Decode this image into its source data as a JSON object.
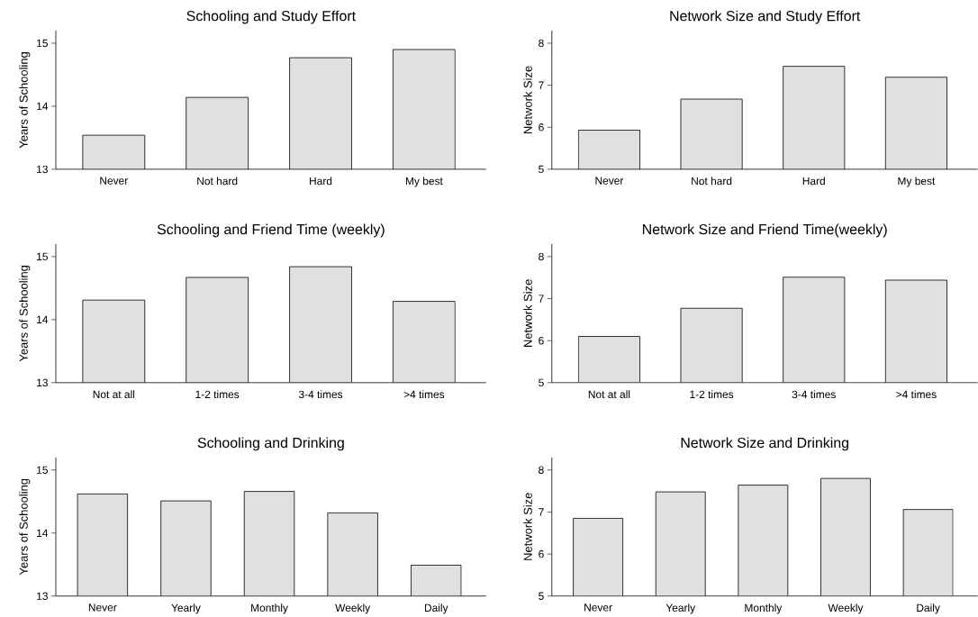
{
  "chart_data": [
    {
      "type": "bar",
      "title": "Schooling and Study Effort",
      "ylabel": "Years of Schooling",
      "categories": [
        "Never",
        "Not hard",
        "Hard",
        "My best"
      ],
      "values": [
        13.54,
        14.14,
        14.77,
        14.9
      ],
      "color": "#e0e0e0",
      "ylim": [
        13,
        15.2
      ],
      "yticks": [
        13,
        14,
        15
      ]
    },
    {
      "type": "bar",
      "title": "Network Size and Study Effort",
      "ylabel": "Network Size",
      "categories": [
        "Never",
        "Not hard",
        "Hard",
        "My best"
      ],
      "values": [
        5.93,
        6.67,
        7.45,
        7.19
      ],
      "color": "#e0e0e0",
      "ylim": [
        5,
        8.3
      ],
      "yticks": [
        5,
        6,
        7,
        8
      ]
    },
    {
      "type": "bar",
      "title": "Schooling and Friend Time (weekly)",
      "ylabel": "Years of Schooling",
      "categories": [
        "Not at all",
        "1-2 times",
        "3-4 times",
        ">4 times"
      ],
      "values": [
        14.31,
        14.67,
        14.84,
        14.29
      ],
      "color": "#e0e0e0",
      "ylim": [
        13,
        15.2
      ],
      "yticks": [
        13,
        14,
        15
      ]
    },
    {
      "type": "bar",
      "title": "Network Size and Friend Time(weekly)",
      "ylabel": "Network Size",
      "categories": [
        "Not at all",
        "1-2 times",
        "3-4 times",
        ">4 times"
      ],
      "values": [
        6.1,
        6.77,
        7.51,
        7.44
      ],
      "color": "#e0e0e0",
      "ylim": [
        5,
        8.3
      ],
      "yticks": [
        5,
        6,
        7,
        8
      ]
    },
    {
      "type": "bar",
      "title": "Schooling and Drinking",
      "ylabel": "Years of Schooling",
      "categories": [
        "Never",
        "Yearly",
        "Monthly",
        "Weekly",
        "Daily"
      ],
      "values": [
        14.62,
        14.51,
        14.66,
        14.32,
        13.49
      ],
      "color": "#e0e0e0",
      "ylim": [
        13,
        15.2
      ],
      "yticks": [
        13,
        14,
        15
      ]
    },
    {
      "type": "bar",
      "title": "Network Size and Drinking",
      "ylabel": "Network Size",
      "categories": [
        "Never",
        "Yearly",
        "Monthly",
        "Weekly",
        "Daily"
      ],
      "values": [
        6.85,
        7.48,
        7.64,
        7.8,
        7.06
      ],
      "color": "#e0e0e0",
      "ylim": [
        5,
        8.3
      ],
      "yticks": [
        5,
        6,
        7,
        8
      ]
    }
  ]
}
